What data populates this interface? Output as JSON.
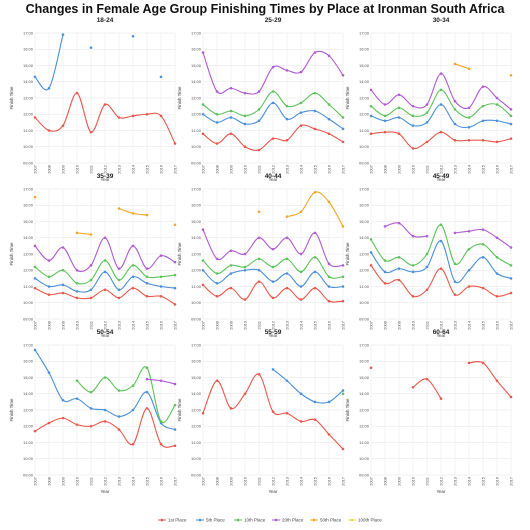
{
  "title": "Changes in Female Age Group Finishing Times by Place at Ironman South Africa",
  "colors": {
    "1st Place": "#e8574b",
    "5th Place": "#4a90d9",
    "10th Place": "#5cc25a",
    "20th Place": "#b15ad1",
    "50th Place": "#f5a623",
    "100th Place": "#e6d84a"
  },
  "legend": [
    "1st Place",
    "5th Place",
    "10th Place",
    "20th Place",
    "50th Place",
    "100th Place"
  ],
  "chart_data": [
    {
      "type": "line",
      "title": "18-24",
      "xlabel": "Year",
      "ylabel": "Finish Time",
      "x": [
        "2007",
        "2008",
        "2009",
        "2010",
        "2011",
        "2012",
        "2013",
        "2014",
        "2015",
        "2016",
        "2017"
      ],
      "yticks": [
        "09:00",
        "10:00",
        "11:00",
        "12:00",
        "13:00",
        "14:00",
        "15:00",
        "16:00",
        "17:00"
      ],
      "ylim": [
        9,
        17
      ],
      "series": [
        {
          "name": "1st Place",
          "values": [
            11.8,
            11.0,
            11.3,
            13.3,
            10.9,
            12.6,
            11.8,
            11.9,
            12.0,
            11.9,
            10.2
          ]
        },
        {
          "name": "5th Place",
          "values": [
            14.3,
            13.6,
            16.9,
            null,
            16.1,
            null,
            null,
            16.8,
            null,
            14.3,
            null
          ]
        }
      ]
    },
    {
      "type": "line",
      "title": "25-29",
      "xlabel": "Year",
      "ylabel": "Finish Time",
      "x": [
        "2007",
        "2008",
        "2009",
        "2010",
        "2011",
        "2012",
        "2013",
        "2014",
        "2015",
        "2016",
        "2017"
      ],
      "yticks": [
        "09:00",
        "10:00",
        "11:00",
        "12:00",
        "13:00",
        "14:00",
        "15:00",
        "16:00",
        "17:00"
      ],
      "ylim": [
        9,
        17
      ],
      "series": [
        {
          "name": "1st Place",
          "values": [
            10.8,
            10.2,
            10.8,
            10.0,
            9.8,
            10.5,
            10.4,
            11.3,
            11.1,
            10.8,
            10.3
          ]
        },
        {
          "name": "5th Place",
          "values": [
            12.0,
            11.5,
            11.8,
            11.4,
            11.6,
            12.7,
            11.7,
            12.1,
            12.2,
            11.7,
            11.1
          ]
        },
        {
          "name": "10th Place",
          "values": [
            12.6,
            12.0,
            12.2,
            11.9,
            12.3,
            13.4,
            12.5,
            12.7,
            13.3,
            12.6,
            11.8
          ]
        },
        {
          "name": "20th Place",
          "values": [
            15.8,
            13.4,
            13.6,
            13.3,
            13.4,
            14.9,
            14.7,
            14.6,
            15.8,
            15.6,
            14.4
          ]
        }
      ]
    },
    {
      "type": "line",
      "title": "30-34",
      "xlabel": "Year",
      "ylabel": "Finish Time",
      "x": [
        "2007",
        "2008",
        "2009",
        "2010",
        "2011",
        "2012",
        "2013",
        "2014",
        "2015",
        "2016",
        "2017"
      ],
      "yticks": [
        "09:00",
        "10:00",
        "11:00",
        "12:00",
        "13:00",
        "14:00",
        "15:00",
        "16:00",
        "17:00"
      ],
      "ylim": [
        9,
        17
      ],
      "series": [
        {
          "name": "1st Place",
          "values": [
            10.8,
            10.9,
            10.8,
            9.9,
            10.3,
            10.9,
            10.4,
            10.4,
            10.4,
            10.3,
            10.5
          ]
        },
        {
          "name": "5th Place",
          "values": [
            11.9,
            11.6,
            11.8,
            11.3,
            11.5,
            12.6,
            11.4,
            11.2,
            11.6,
            11.6,
            11.4
          ]
        },
        {
          "name": "10th Place",
          "values": [
            12.5,
            11.9,
            12.4,
            11.9,
            12.1,
            13.5,
            12.3,
            11.8,
            12.5,
            12.6,
            11.9
          ]
        },
        {
          "name": "20th Place",
          "values": [
            13.5,
            12.6,
            13.2,
            12.5,
            12.6,
            14.5,
            12.8,
            12.4,
            13.7,
            13.0,
            12.3
          ]
        },
        {
          "name": "50th Place",
          "values": [
            null,
            null,
            null,
            null,
            null,
            null,
            15.1,
            14.8,
            null,
            null,
            14.4
          ]
        }
      ]
    },
    {
      "type": "line",
      "title": "35-39",
      "xlabel": "Year",
      "ylabel": "Finish Time",
      "x": [
        "2007",
        "2008",
        "2009",
        "2010",
        "2011",
        "2012",
        "2013",
        "2014",
        "2015",
        "2016",
        "2017"
      ],
      "yticks": [
        "09:00",
        "10:00",
        "11:00",
        "12:00",
        "13:00",
        "14:00",
        "15:00",
        "16:00",
        "17:00"
      ],
      "ylim": [
        9,
        17
      ],
      "series": [
        {
          "name": "1st Place",
          "values": [
            10.9,
            10.5,
            10.6,
            10.3,
            10.3,
            10.8,
            10.3,
            10.9,
            10.4,
            10.4,
            9.9
          ]
        },
        {
          "name": "5th Place",
          "values": [
            11.5,
            11.0,
            11.1,
            10.7,
            10.8,
            11.9,
            10.8,
            11.6,
            11.2,
            11.0,
            10.9
          ]
        },
        {
          "name": "10th Place",
          "values": [
            12.2,
            11.6,
            12.0,
            11.2,
            11.4,
            12.6,
            11.4,
            12.3,
            11.6,
            11.6,
            11.7
          ]
        },
        {
          "name": "20th Place",
          "values": [
            13.5,
            12.6,
            13.4,
            12.0,
            12.3,
            14.0,
            12.1,
            13.5,
            12.1,
            12.9,
            12.5
          ]
        },
        {
          "name": "50th Place",
          "values": [
            16.5,
            null,
            null,
            14.3,
            14.2,
            null,
            15.8,
            15.5,
            15.4,
            null,
            14.8
          ]
        }
      ]
    },
    {
      "type": "line",
      "title": "40-44",
      "xlabel": "Year",
      "ylabel": "Finish Time",
      "x": [
        "2007",
        "2008",
        "2009",
        "2010",
        "2011",
        "2012",
        "2013",
        "2014",
        "2015",
        "2016",
        "2017"
      ],
      "yticks": [
        "09:00",
        "10:00",
        "11:00",
        "12:00",
        "13:00",
        "14:00",
        "15:00",
        "16:00",
        "17:00"
      ],
      "ylim": [
        9,
        17
      ],
      "series": [
        {
          "name": "1st Place",
          "values": [
            11.1,
            10.4,
            10.9,
            10.2,
            11.3,
            10.3,
            10.9,
            10.2,
            10.9,
            10.1,
            10.1
          ]
        },
        {
          "name": "5th Place",
          "values": [
            12.0,
            11.2,
            11.8,
            12.0,
            12.0,
            11.3,
            11.8,
            11.0,
            11.9,
            11.0,
            11.0
          ]
        },
        {
          "name": "10th Place",
          "values": [
            12.6,
            11.8,
            12.3,
            12.2,
            12.7,
            12.2,
            12.7,
            11.9,
            12.8,
            11.6,
            11.6
          ]
        },
        {
          "name": "20th Place",
          "values": [
            14.5,
            12.7,
            13.2,
            13.0,
            14.0,
            13.3,
            14.0,
            13.0,
            14.3,
            12.4,
            12.3
          ]
        },
        {
          "name": "50th Place",
          "values": [
            null,
            null,
            null,
            null,
            15.6,
            null,
            15.3,
            15.6,
            16.8,
            16.2,
            14.7
          ]
        }
      ]
    },
    {
      "type": "line",
      "title": "45-49",
      "xlabel": "Year",
      "ylabel": "Finish Time",
      "x": [
        "2007",
        "2008",
        "2009",
        "2010",
        "2011",
        "2012",
        "2013",
        "2014",
        "2015",
        "2016",
        "2017"
      ],
      "yticks": [
        "09:00",
        "10:00",
        "11:00",
        "12:00",
        "13:00",
        "14:00",
        "15:00",
        "16:00",
        "17:00"
      ],
      "ylim": [
        9,
        17
      ],
      "series": [
        {
          "name": "1st Place",
          "values": [
            12.3,
            11.2,
            11.4,
            10.4,
            10.8,
            12.1,
            10.5,
            11.0,
            10.9,
            10.4,
            10.6
          ]
        },
        {
          "name": "5th Place",
          "values": [
            13.1,
            11.9,
            12.1,
            11.9,
            12.2,
            13.8,
            11.3,
            12.0,
            12.8,
            11.8,
            11.5
          ]
        },
        {
          "name": "10th Place",
          "values": [
            13.9,
            12.6,
            12.8,
            12.3,
            13.0,
            14.8,
            12.4,
            13.3,
            13.6,
            12.8,
            12.3
          ]
        },
        {
          "name": "20th Place",
          "values": [
            null,
            14.7,
            14.9,
            14.1,
            14.1,
            null,
            14.3,
            14.4,
            14.5,
            14.0,
            13.4
          ]
        }
      ]
    },
    {
      "type": "line",
      "title": "50-54",
      "xlabel": "Year",
      "ylabel": "Finish Time",
      "x": [
        "2007",
        "2008",
        "2009",
        "2010",
        "2011",
        "2012",
        "2013",
        "2014",
        "2015",
        "2016",
        "2017"
      ],
      "yticks": [
        "09:00",
        "10:00",
        "11:00",
        "12:00",
        "13:00",
        "14:00",
        "15:00",
        "16:00",
        "17:00"
      ],
      "ylim": [
        9,
        17
      ],
      "series": [
        {
          "name": "1st Place",
          "values": [
            11.7,
            12.2,
            12.5,
            12.1,
            12.0,
            12.3,
            11.8,
            10.9,
            13.1,
            10.9,
            10.8
          ]
        },
        {
          "name": "5th Place",
          "values": [
            16.7,
            15.3,
            13.6,
            13.7,
            13.1,
            13.0,
            12.6,
            13.0,
            14.1,
            12.2,
            11.8
          ]
        },
        {
          "name": "10th Place",
          "values": [
            null,
            null,
            null,
            14.8,
            14.1,
            15.0,
            14.2,
            14.5,
            15.6,
            12.3,
            13.3
          ]
        },
        {
          "name": "20th Place",
          "values": [
            null,
            null,
            null,
            null,
            null,
            null,
            null,
            null,
            14.9,
            14.8,
            14.6
          ]
        }
      ]
    },
    {
      "type": "line",
      "title": "55-59",
      "xlabel": "Year",
      "ylabel": "Finish Time",
      "x": [
        "2007",
        "2008",
        "2009",
        "2010",
        "2011",
        "2012",
        "2013",
        "2014",
        "2015",
        "2016",
        "2017"
      ],
      "yticks": [
        "09:00",
        "10:00",
        "11:00",
        "12:00",
        "13:00",
        "14:00",
        "15:00",
        "16:00",
        "17:00"
      ],
      "ylim": [
        9,
        17
      ],
      "series": [
        {
          "name": "1st Place",
          "values": [
            12.8,
            14.8,
            13.1,
            14.0,
            15.2,
            12.9,
            12.8,
            12.3,
            12.4,
            11.5,
            10.6
          ]
        },
        {
          "name": "5th Place",
          "values": [
            null,
            null,
            null,
            null,
            null,
            15.5,
            14.8,
            14.0,
            13.5,
            13.5,
            14.2
          ]
        },
        {
          "name": "10th Place",
          "values": [
            null,
            null,
            null,
            null,
            null,
            null,
            null,
            null,
            null,
            null,
            14.0
          ]
        }
      ]
    },
    {
      "type": "line",
      "title": "60-64",
      "xlabel": "Year",
      "ylabel": "Finish Time",
      "x": [
        "2007",
        "2008",
        "2009",
        "2010",
        "2011",
        "2012",
        "2013",
        "2014",
        "2015",
        "2016",
        "2017"
      ],
      "yticks": [
        "09:00",
        "10:00",
        "11:00",
        "12:00",
        "13:00",
        "14:00",
        "15:00",
        "16:00",
        "17:00"
      ],
      "ylim": [
        9,
        17
      ],
      "series": [
        {
          "name": "1st Place",
          "values": [
            15.6,
            null,
            null,
            14.4,
            14.9,
            13.7,
            null,
            15.9,
            15.9,
            14.8,
            13.8
          ]
        }
      ]
    }
  ]
}
